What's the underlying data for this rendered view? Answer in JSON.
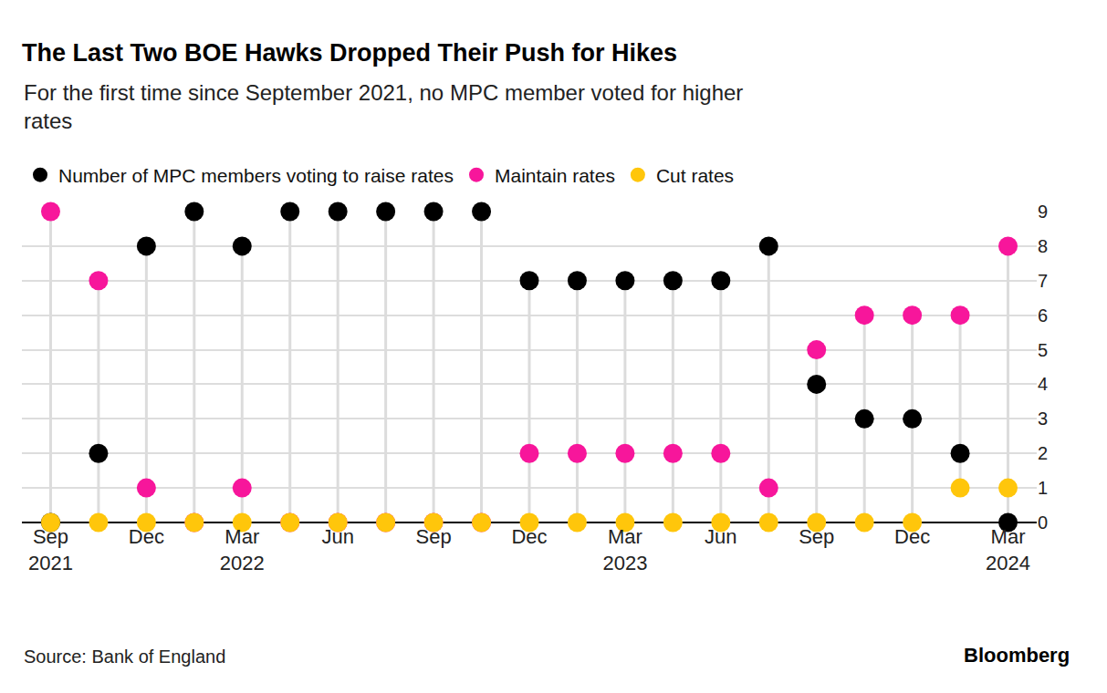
{
  "chart_data": {
    "type": "scatter",
    "title": "The Last Two BOE Hawks Dropped Their Push for Hikes",
    "subtitle": "For the first time since September 2021, no MPC member voted for higher rates",
    "categories": [
      "Sep 2021",
      null,
      "Dec",
      null,
      "Mar 2022",
      null,
      "Jun",
      null,
      "Sep",
      null,
      "Dec",
      null,
      "Mar 2023",
      null,
      "Jun",
      null,
      "Sep",
      null,
      "Dec",
      null,
      "Mar 2024"
    ],
    "series": [
      {
        "name": "Number of MPC members voting to raise rates",
        "color": "#000000",
        "values": [
          0,
          2,
          8,
          9,
          8,
          9,
          9,
          9,
          9,
          9,
          7,
          7,
          7,
          7,
          7,
          8,
          4,
          3,
          3,
          2,
          0
        ]
      },
      {
        "name": "Maintain rates",
        "color": "#f7169b",
        "values": [
          9,
          7,
          1,
          0,
          1,
          0,
          0,
          0,
          0,
          0,
          2,
          2,
          2,
          2,
          2,
          1,
          5,
          6,
          6,
          6,
          8
        ]
      },
      {
        "name": "Cut rates",
        "color": "#ffc60b",
        "values": [
          0,
          0,
          0,
          0,
          0,
          0,
          0,
          0,
          0,
          0,
          0,
          0,
          0,
          0,
          0,
          0,
          0,
          0,
          0,
          1,
          1
        ]
      }
    ],
    "ylim": [
      0,
      9
    ],
    "yticks": [
      0,
      1,
      2,
      3,
      4,
      5,
      6,
      7,
      8,
      9
    ],
    "grid": true,
    "marker": "circle",
    "legend": "top",
    "source": "Source: Bank of England",
    "credit": "Bloomberg"
  }
}
